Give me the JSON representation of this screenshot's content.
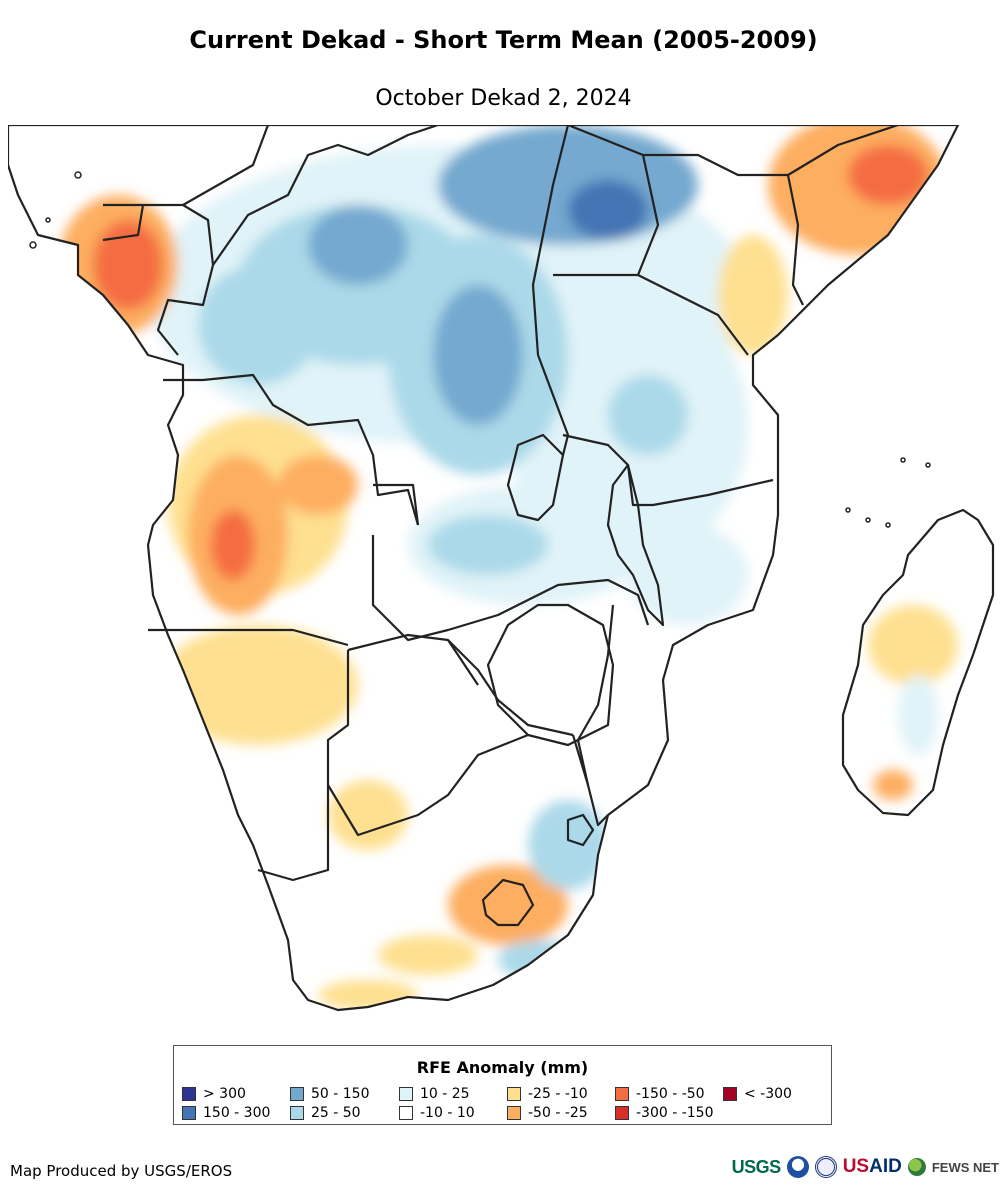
{
  "title": "Current Dekad - Short Term Mean (2005-2009)",
  "subtitle": "October Dekad 2, 2024",
  "legend": {
    "title": "RFE Anomaly (mm)",
    "items": [
      {
        "label": "> 300",
        "color": "#2b3593"
      },
      {
        "label": "150 - 300",
        "color": "#4575b4"
      },
      {
        "label": "50 - 150",
        "color": "#74a9cf"
      },
      {
        "label": "25 - 50",
        "color": "#abd9e9"
      },
      {
        "label": "10 - 25",
        "color": "#e0f3f8"
      },
      {
        "label": "-10 - 10",
        "color": "#ffffff"
      },
      {
        "label": "-25 - -10",
        "color": "#fee090"
      },
      {
        "label": "-50 - -25",
        "color": "#fdae61"
      },
      {
        "label": "-150 - -50",
        "color": "#f46d43"
      },
      {
        "label": "-300 - -150",
        "color": "#d73027"
      },
      {
        "label": "< -300",
        "color": "#a50026"
      }
    ]
  },
  "credit": "Map Produced by USGS/EROS",
  "logos": {
    "usgs": "USGS",
    "usaid_us": "US",
    "usaid_aid": "AID",
    "fews": "FEWS NET"
  }
}
